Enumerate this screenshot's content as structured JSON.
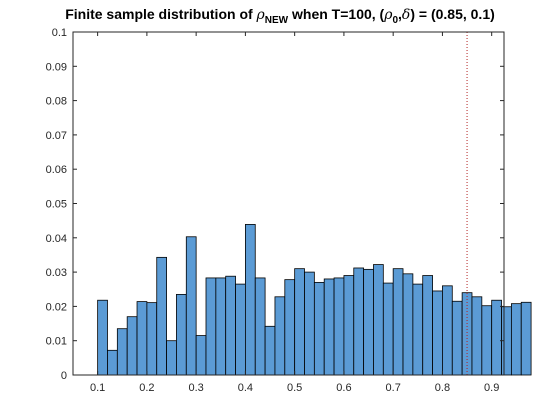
{
  "chart_data": {
    "type": "bar",
    "title": {
      "prefix": "Finite sample distribution of ",
      "symbol": "ρ",
      "symbol_sub": "NEW",
      "middle": " when T=100, (",
      "symbol2": "ρ",
      "symbol2_sub": "0",
      "comma": ",",
      "symbol3": "δ",
      "suffix": ") = (0.85, 0.1)"
    },
    "xlabel": "",
    "ylabel": "",
    "xlim": [
      0.05,
      0.925
    ],
    "ylim": [
      0,
      0.1
    ],
    "xticks": [
      "0.1",
      "0.2",
      "0.3",
      "0.4",
      "0.5",
      "0.6",
      "0.7",
      "0.8",
      "0.9"
    ],
    "yticks": [
      "0",
      "0.01",
      "0.02",
      "0.03",
      "0.04",
      "0.05",
      "0.06",
      "0.07",
      "0.08",
      "0.09",
      "0.1"
    ],
    "bin_start": 0.1,
    "bin_width": 0.02,
    "values": [
      0.0218,
      0.0072,
      0.0135,
      0.017,
      0.0214,
      0.0211,
      0.0343,
      0.01,
      0.0235,
      0.0403,
      0.0115,
      0.0283,
      0.0283,
      0.0288,
      0.0265,
      0.0439,
      0.0283,
      0.0142,
      0.0228,
      0.0278,
      0.031,
      0.03,
      0.027,
      0.028,
      0.0283,
      0.029,
      0.0312,
      0.0308,
      0.0322,
      0.0268,
      0.031,
      0.0295,
      0.0265,
      0.029,
      0.0245,
      0.026,
      0.0215,
      0.024,
      0.0228,
      0.0202,
      0.0218,
      0.0199,
      0.0208,
      0.0212
    ],
    "reference_line": {
      "x": 0.85,
      "style": "dotted",
      "color": "#b22222"
    },
    "bar_color": "#5b9bd5",
    "bar_edge": "#000000",
    "grid": false,
    "legend": "none"
  }
}
